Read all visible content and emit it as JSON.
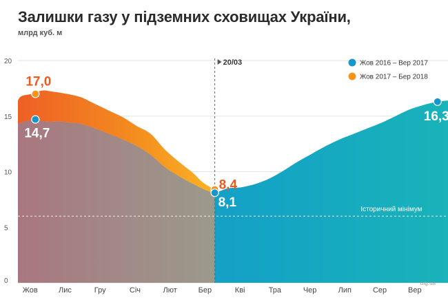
{
  "title": "Залишки газу у підземних сховищах України,",
  "subtitle": "млрд куб. м",
  "watermark": "utg.ua",
  "chart_data": {
    "type": "area",
    "ylim": [
      0,
      20
    ],
    "y_ticks": [
      0,
      5,
      10,
      15,
      20
    ],
    "x_months": [
      "Жов",
      "Лис",
      "Гру",
      "Січ",
      "Лют",
      "Бер",
      "Кві",
      "Тра",
      "Чер",
      "Лип",
      "Сер",
      "Вер"
    ],
    "xlim": [
      0,
      12.3
    ],
    "marker": {
      "label": "20/03",
      "x": 5.63
    },
    "reference_line": {
      "label": "Історичний мінімум",
      "y": 6.0
    },
    "legend": [
      {
        "name": "Жов 2016 – Вер 2017",
        "color": "#1597c9"
      },
      {
        "name": "Жов 2017 – Бер 2018",
        "color": "#f7941d"
      }
    ],
    "series": [
      {
        "name": "Жов 2016 – Вер 2017",
        "x": [
          -0.1,
          0.2,
          0.5,
          0.8,
          1.2,
          1.5,
          1.8,
          2.2,
          2.6,
          3.0,
          3.4,
          3.8,
          4.2,
          4.6,
          5.0,
          5.4,
          5.63,
          6.0,
          6.4,
          6.8,
          7.2,
          7.6,
          8.0,
          8.4,
          8.8,
          9.2,
          9.6,
          10.0,
          10.4,
          10.8,
          11.2,
          11.6,
          12.0,
          12.3
        ],
        "values": [
          14.3,
          14.5,
          14.7,
          14.5,
          14.5,
          14.4,
          14.3,
          13.9,
          13.4,
          12.9,
          12.3,
          11.5,
          10.4,
          9.6,
          8.9,
          8.3,
          8.1,
          8.5,
          8.6,
          8.9,
          9.4,
          10.1,
          10.9,
          11.6,
          12.3,
          12.9,
          13.4,
          13.9,
          14.4,
          15.0,
          15.6,
          16.0,
          16.3,
          16.4
        ]
      },
      {
        "name": "Жов 2017 – Бер 2018",
        "x": [
          -0.1,
          0.1,
          0.4,
          0.7,
          1.0,
          1.4,
          1.8,
          2.2,
          2.6,
          3.0,
          3.4,
          3.8,
          4.2,
          4.6,
          5.0,
          5.3,
          5.63
        ],
        "values": [
          16.4,
          16.8,
          17.0,
          17.3,
          17.2,
          17.0,
          16.7,
          16.1,
          15.5,
          14.9,
          14.1,
          13.4,
          12.0,
          10.9,
          9.9,
          9.0,
          8.4
        ]
      }
    ],
    "annotations": [
      {
        "label": "17,0",
        "x": 0.5,
        "y": 17.0,
        "series": 1
      },
      {
        "label": "14,7",
        "x": 0.5,
        "y": 14.7,
        "series": 0
      },
      {
        "label": "8,4",
        "x": 5.63,
        "y": 8.4,
        "series": 1
      },
      {
        "label": "8,1",
        "x": 5.63,
        "y": 8.1,
        "series": 0
      },
      {
        "label": "16,3",
        "x": 12.0,
        "y": 16.3,
        "series": 0
      }
    ]
  }
}
